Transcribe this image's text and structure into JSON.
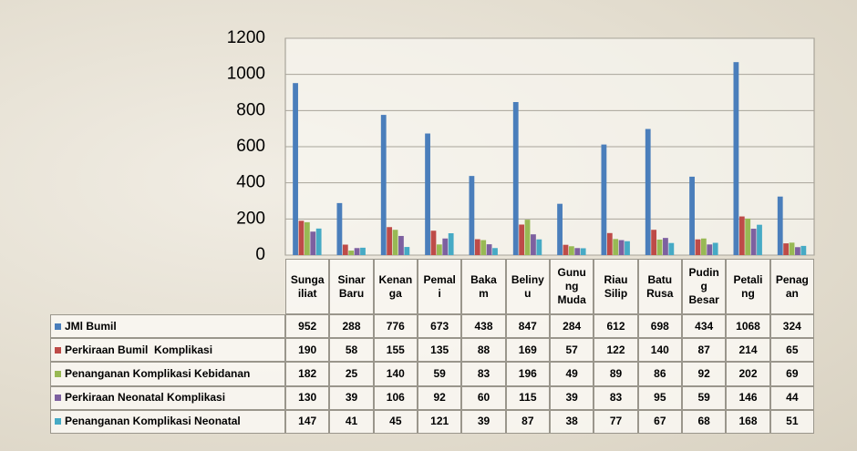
{
  "chart_data": {
    "type": "bar",
    "categories": [
      "Sunga\niliat",
      "Sinar\nBaru",
      "Kenan\nga",
      "Pemal\ni",
      "Baka\nm",
      "Beliny\nu",
      "Gunu\nng\nMuda",
      "Riau\nSilip",
      "Batu\nRusa",
      "Pudin\ng\nBesar",
      "Petali\nng",
      "Penag\nan"
    ],
    "series": [
      {
        "name": "JMl Bumil",
        "color": "#4a7ebb",
        "values": [
          952,
          288,
          776,
          673,
          438,
          847,
          284,
          612,
          698,
          434,
          1068,
          324
        ]
      },
      {
        "name": "Perkiraan Bumil  Komplikasi",
        "color": "#be4b48",
        "values": [
          190,
          58,
          155,
          135,
          88,
          169,
          57,
          122,
          140,
          87,
          214,
          65
        ]
      },
      {
        "name": "Penanganan Komplikasi Kebidanan",
        "color": "#98b954",
        "values": [
          182,
          25,
          140,
          59,
          83,
          196,
          49,
          89,
          86,
          92,
          202,
          69
        ]
      },
      {
        "name": "Perkiraan Neonatal Komplikasi",
        "color": "#7d60a0",
        "values": [
          130,
          39,
          106,
          92,
          60,
          115,
          39,
          83,
          95,
          59,
          146,
          44
        ]
      },
      {
        "name": "Penanganan Komplikasi Neonatal",
        "color": "#46aac5",
        "values": [
          147,
          41,
          45,
          121,
          39,
          87,
          38,
          77,
          67,
          68,
          168,
          51
        ]
      }
    ],
    "ylim": [
      0,
      1200
    ],
    "yticks": [
      0,
      200,
      400,
      600,
      800,
      1000,
      1200
    ],
    "grid": true
  }
}
